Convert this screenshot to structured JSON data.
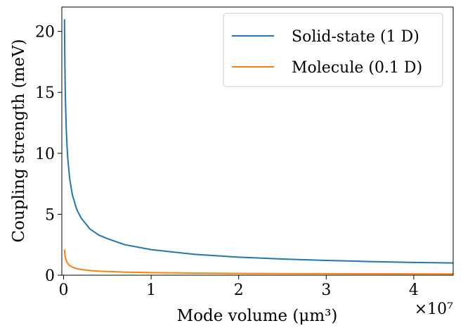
{
  "chart_data": {
    "type": "line",
    "title": "",
    "xlabel": "Mode volume (μm³)",
    "ylabel": "Coupling strength (meV)",
    "x_scale_label": "×10⁷",
    "xlim": [
      -0.02,
      4.45
    ],
    "ylim": [
      0,
      22
    ],
    "xticks": [
      0,
      1,
      2,
      3,
      4
    ],
    "xtick_labels": [
      "0",
      "1",
      "2",
      "3",
      "4"
    ],
    "yticks": [
      0,
      5,
      10,
      15,
      20
    ],
    "ytick_labels": [
      "0",
      "5",
      "10",
      "15",
      "20"
    ],
    "grid": false,
    "legend_position": "top-right",
    "series": [
      {
        "name": "Solid-state (1 D)",
        "color": "#1f77b4",
        "x": [
          0.01,
          0.015,
          0.02,
          0.03,
          0.04,
          0.05,
          0.07,
          0.1,
          0.15,
          0.2,
          0.3,
          0.4,
          0.5,
          0.7,
          1.0,
          1.5,
          2.0,
          2.5,
          3.0,
          3.5,
          4.0,
          4.45
        ],
        "values": [
          21.0,
          17.1,
          14.8,
          12.1,
          10.5,
          9.4,
          7.9,
          6.6,
          5.4,
          4.7,
          3.8,
          3.3,
          3.0,
          2.5,
          2.1,
          1.71,
          1.48,
          1.33,
          1.21,
          1.12,
          1.05,
          1.0
        ]
      },
      {
        "name": "Molecule (0.1 D)",
        "color": "#ff7f0e",
        "x": [
          0.01,
          0.015,
          0.02,
          0.03,
          0.04,
          0.05,
          0.07,
          0.1,
          0.15,
          0.2,
          0.3,
          0.4,
          0.5,
          0.7,
          1.0,
          1.5,
          2.0,
          2.5,
          3.0,
          3.5,
          4.0,
          4.45
        ],
        "values": [
          2.1,
          1.71,
          1.48,
          1.21,
          1.05,
          0.94,
          0.79,
          0.66,
          0.54,
          0.47,
          0.38,
          0.33,
          0.3,
          0.25,
          0.21,
          0.171,
          0.148,
          0.133,
          0.121,
          0.112,
          0.105,
          0.1
        ]
      }
    ]
  }
}
